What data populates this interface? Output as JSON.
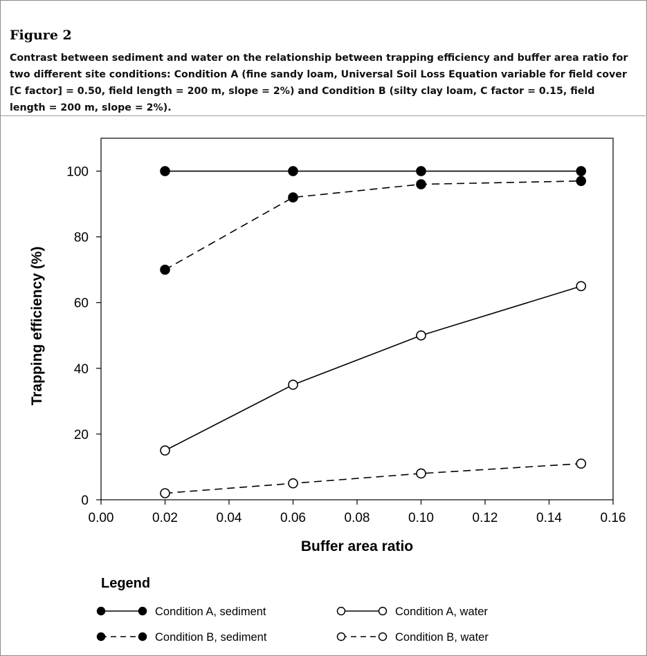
{
  "figure": {
    "title": "Figure 2",
    "caption": "Contrast between sediment and water on the relationship between trapping efficiency and buffer area ratio for two different site conditions: Condition A (fine sandy loam, Universal Soil Loss Equation variable for field cover [C factor] = 0.50, field length = 200 m, slope = 2%) and Condition B (silty clay loam, C factor = 0.15, field length = 200 m, slope = 2%)."
  },
  "legend": {
    "title": "Legend"
  },
  "chart_data": {
    "type": "line",
    "xlabel": "Buffer area ratio",
    "ylabel": "Trapping efficiency (%)",
    "xlim": [
      0,
      0.16
    ],
    "ylim": [
      0,
      110
    ],
    "x_ticks": [
      "0.00",
      "0.02",
      "0.04",
      "0.06",
      "0.08",
      "0.10",
      "0.12",
      "0.14",
      "0.16"
    ],
    "y_ticks": [
      "0",
      "20",
      "40",
      "60",
      "80",
      "100"
    ],
    "grid": false,
    "legend_position": "below",
    "x": [
      0.02,
      0.06,
      0.1,
      0.15
    ],
    "series": [
      {
        "name": "Condition A, sediment",
        "values": [
          100,
          100,
          100,
          100
        ],
        "marker": "filled",
        "line": "solid"
      },
      {
        "name": "Condition B, sediment",
        "values": [
          70,
          92,
          96,
          97
        ],
        "marker": "filled",
        "line": "dashed"
      },
      {
        "name": "Condition A, water",
        "values": [
          15,
          35,
          50,
          65
        ],
        "marker": "open",
        "line": "solid"
      },
      {
        "name": "Condition B, water",
        "values": [
          2,
          5,
          8,
          11
        ],
        "marker": "open",
        "line": "dashed"
      }
    ],
    "colors": {
      "line": "#000000",
      "marker_fill": "#000000",
      "open_fill": "#ffffff"
    }
  }
}
